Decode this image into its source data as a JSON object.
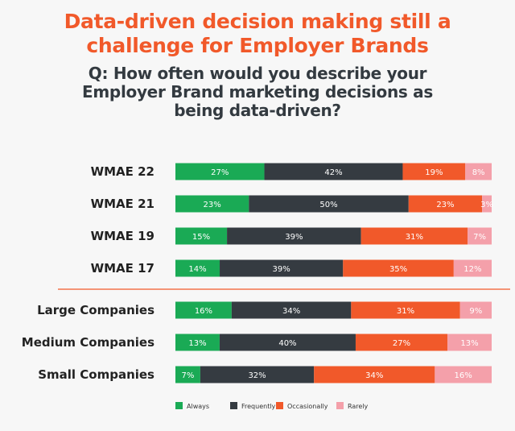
{
  "chart_data": {
    "type": "bar",
    "orientation": "horizontal",
    "stacked": true,
    "title": "Data-driven decision making still a challenge for Employer Brands",
    "subtitle": "Q: How often would you describe your Employer Brand marketing decisions as being data-driven?",
    "categories": [
      "WMAE 22",
      "WMAE 21",
      "WMAE 19",
      "WMAE 17",
      "Large Companies",
      "Medium Companies",
      "Small Companies"
    ],
    "series": [
      {
        "name": "Always",
        "color": "#1aaa55",
        "values": [
          27,
          23,
          15,
          14,
          16,
          13,
          7
        ]
      },
      {
        "name": "Frequently",
        "color": "#353b41",
        "values": [
          42,
          50,
          39,
          39,
          34,
          40,
          32
        ]
      },
      {
        "name": "Occasionally",
        "color": "#f1592a",
        "values": [
          19,
          23,
          31,
          35,
          31,
          27,
          34
        ]
      },
      {
        "name": "Rarely",
        "color": "#f4a0aa",
        "values": [
          8,
          3,
          7,
          12,
          9,
          13,
          16
        ]
      }
    ],
    "value_suffix": "%",
    "xlim": [
      0,
      100
    ],
    "grid": false,
    "legend": "bottom",
    "separator_after_category": "WMAE 17",
    "separator_color": "#f1592a"
  }
}
